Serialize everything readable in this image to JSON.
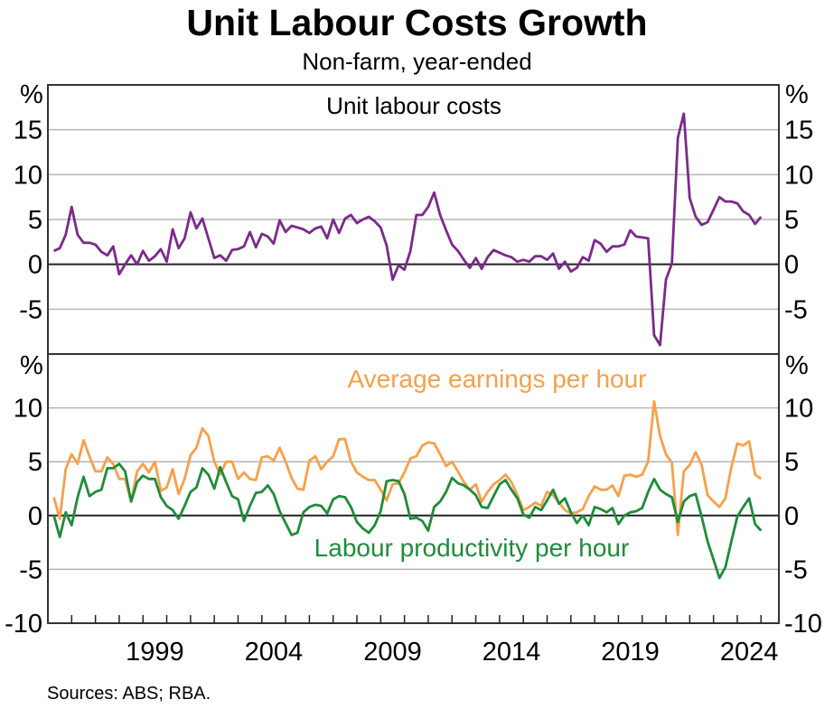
{
  "chart_data": {
    "type": "line",
    "title": "Unit Labour Costs Growth",
    "subtitle": "Non-farm, year-ended",
    "source": "Sources: ABS; RBA.",
    "frequency": "quarterly",
    "x_start": "1995 Q1",
    "x_end": "2024 Q4",
    "x_range": [
      1995.0,
      2025.75
    ],
    "x_tick_labels": [
      "1999",
      "2004",
      "2009",
      "2014",
      "2019",
      "2024"
    ],
    "x_label_years": [
      1999,
      2004,
      2009,
      2014,
      2019,
      2024
    ],
    "x_minor_ticks": "every year",
    "grid": true,
    "panels": [
      {
        "name": "top",
        "panel_title": "Unit labour costs",
        "unit_label": "%",
        "ylim": [
          -10,
          20
        ],
        "yticks": [
          -5,
          0,
          5,
          10,
          15
        ],
        "ytick_labels": [
          "-5",
          "0",
          "5",
          "10",
          "15"
        ],
        "series": [
          {
            "name": "Unit labour costs",
            "color": "#7b2a8a",
            "values": [
              1.5,
              1.8,
              3.3,
              6.4,
              3.3,
              2.4,
              2.4,
              2.2,
              1.4,
              1.0,
              2.0,
              -1.1,
              0.0,
              1.0,
              0.0,
              1.5,
              0.4,
              0.9,
              1.7,
              0.3,
              3.9,
              1.8,
              2.9,
              5.8,
              4.0,
              5.1,
              2.9,
              0.7,
              1.0,
              0.4,
              1.6,
              1.7,
              2.0,
              3.6,
              1.9,
              3.4,
              3.1,
              2.3,
              4.9,
              3.6,
              4.3,
              4.1,
              3.9,
              3.5,
              4.0,
              4.2,
              2.9,
              5.0,
              3.5,
              5.1,
              5.5,
              4.6,
              5.0,
              5.3,
              4.8,
              4.1,
              2.1,
              -1.7,
              -0.1,
              -0.6,
              1.5,
              5.5,
              5.5,
              6.4,
              8.0,
              5.5,
              3.8,
              2.2,
              1.5,
              0.5,
              -0.4,
              0.7,
              -0.5,
              0.8,
              1.6,
              1.3,
              1.0,
              0.8,
              0.3,
              0.5,
              0.3,
              0.9,
              0.9,
              0.5,
              1.2,
              -0.5,
              0.3,
              -0.8,
              -0.4,
              0.8,
              0.4,
              2.7,
              2.3,
              1.4,
              2.0,
              2.0,
              2.2,
              3.8,
              3.1,
              3.0,
              2.9,
              -7.9,
              -9.0,
              -1.7,
              0.1,
              14.1,
              16.8,
              7.4,
              5.3,
              4.4,
              4.7,
              6.1,
              7.5,
              7.0,
              7.0,
              6.8,
              5.9,
              5.5,
              4.5,
              5.3
            ]
          }
        ]
      },
      {
        "name": "bottom",
        "unit_label": "%",
        "ylim": [
          -10,
          15
        ],
        "yticks": [
          -10,
          -5,
          0,
          5,
          10
        ],
        "ytick_labels": [
          "-10",
          "-5",
          "0",
          "5",
          "10"
        ],
        "series": [
          {
            "name": "Average earnings per hour",
            "color": "#f7a04a",
            "values": [
              1.7,
              -0.3,
              4.3,
              5.7,
              4.8,
              7.0,
              5.5,
              4.1,
              4.1,
              5.4,
              4.8,
              3.4,
              3.4,
              1.3,
              4.1,
              4.8,
              4.0,
              5.0,
              2.3,
              2.6,
              4.3,
              2.0,
              3.4,
              5.6,
              6.3,
              8.1,
              7.4,
              5.0,
              3.8,
              5.0,
              5.0,
              3.4,
              4.0,
              3.4,
              3.3,
              5.4,
              5.5,
              5.1,
              6.3,
              5.0,
              3.5,
              2.5,
              2.4,
              5.1,
              5.5,
              4.3,
              5.0,
              5.5,
              7.1,
              7.1,
              5.0,
              4.0,
              3.6,
              3.3,
              3.3,
              2.4,
              1.4,
              2.9,
              3.0,
              4.0,
              5.3,
              5.5,
              6.5,
              6.8,
              6.7,
              5.7,
              4.6,
              5.0,
              4.1,
              3.1,
              2.4,
              2.9,
              1.3,
              2.2,
              2.9,
              3.3,
              3.8,
              3.1,
              1.9,
              0.5,
              0.8,
              1.2,
              0.9,
              2.2,
              1.9,
              1.2,
              0.5,
              0.2,
              0.3,
              0.6,
              1.8,
              2.7,
              2.4,
              2.4,
              2.8,
              1.8,
              3.7,
              3.8,
              3.6,
              3.8,
              5.0,
              10.6,
              7.4,
              5.7,
              4.9,
              -1.8,
              4.1,
              4.7,
              5.9,
              4.7,
              1.9,
              1.3,
              0.8,
              1.6,
              4.5,
              6.7,
              6.5,
              6.9,
              3.8,
              3.4
            ]
          },
          {
            "name": "Labour productivity per hour",
            "color": "#1f8c3a",
            "values": [
              0.0,
              -2.0,
              0.3,
              -0.9,
              1.7,
              3.6,
              1.8,
              2.2,
              2.4,
              4.4,
              4.4,
              4.8,
              4.1,
              1.3,
              3.1,
              3.7,
              3.4,
              3.4,
              1.7,
              0.9,
              0.5,
              -0.3,
              0.9,
              2.2,
              2.6,
              4.4,
              3.8,
              2.5,
              4.5,
              3.1,
              1.8,
              1.5,
              -0.5,
              0.9,
              2.1,
              2.2,
              2.8,
              2.0,
              0.4,
              -0.7,
              -1.8,
              -1.6,
              0.3,
              0.8,
              1.0,
              0.9,
              0.2,
              1.5,
              1.8,
              1.7,
              0.8,
              -0.6,
              -1.2,
              -1.6,
              -0.9,
              0.4,
              3.2,
              3.3,
              3.2,
              2.0,
              -0.3,
              -0.2,
              -0.5,
              -1.4,
              0.8,
              1.3,
              2.2,
              3.5,
              3.0,
              2.8,
              2.4,
              1.9,
              0.8,
              0.7,
              1.8,
              2.9,
              3.3,
              2.4,
              1.6,
              0.1,
              -0.2,
              0.8,
              0.5,
              1.4,
              2.4,
              1.1,
              1.6,
              0.3,
              -0.7,
              0.0,
              -0.9,
              0.8,
              0.6,
              0.3,
              0.7,
              -0.8,
              0.0,
              0.3,
              0.4,
              0.7,
              2.2,
              3.4,
              2.4,
              2.0,
              1.7,
              -0.6,
              1.3,
              1.8,
              2.0,
              -0.1,
              -2.4,
              -4.1,
              -5.8,
              -4.8,
              -2.4,
              -0.1,
              0.8,
              1.6,
              -0.8,
              -1.4
            ]
          }
        ]
      }
    ]
  }
}
